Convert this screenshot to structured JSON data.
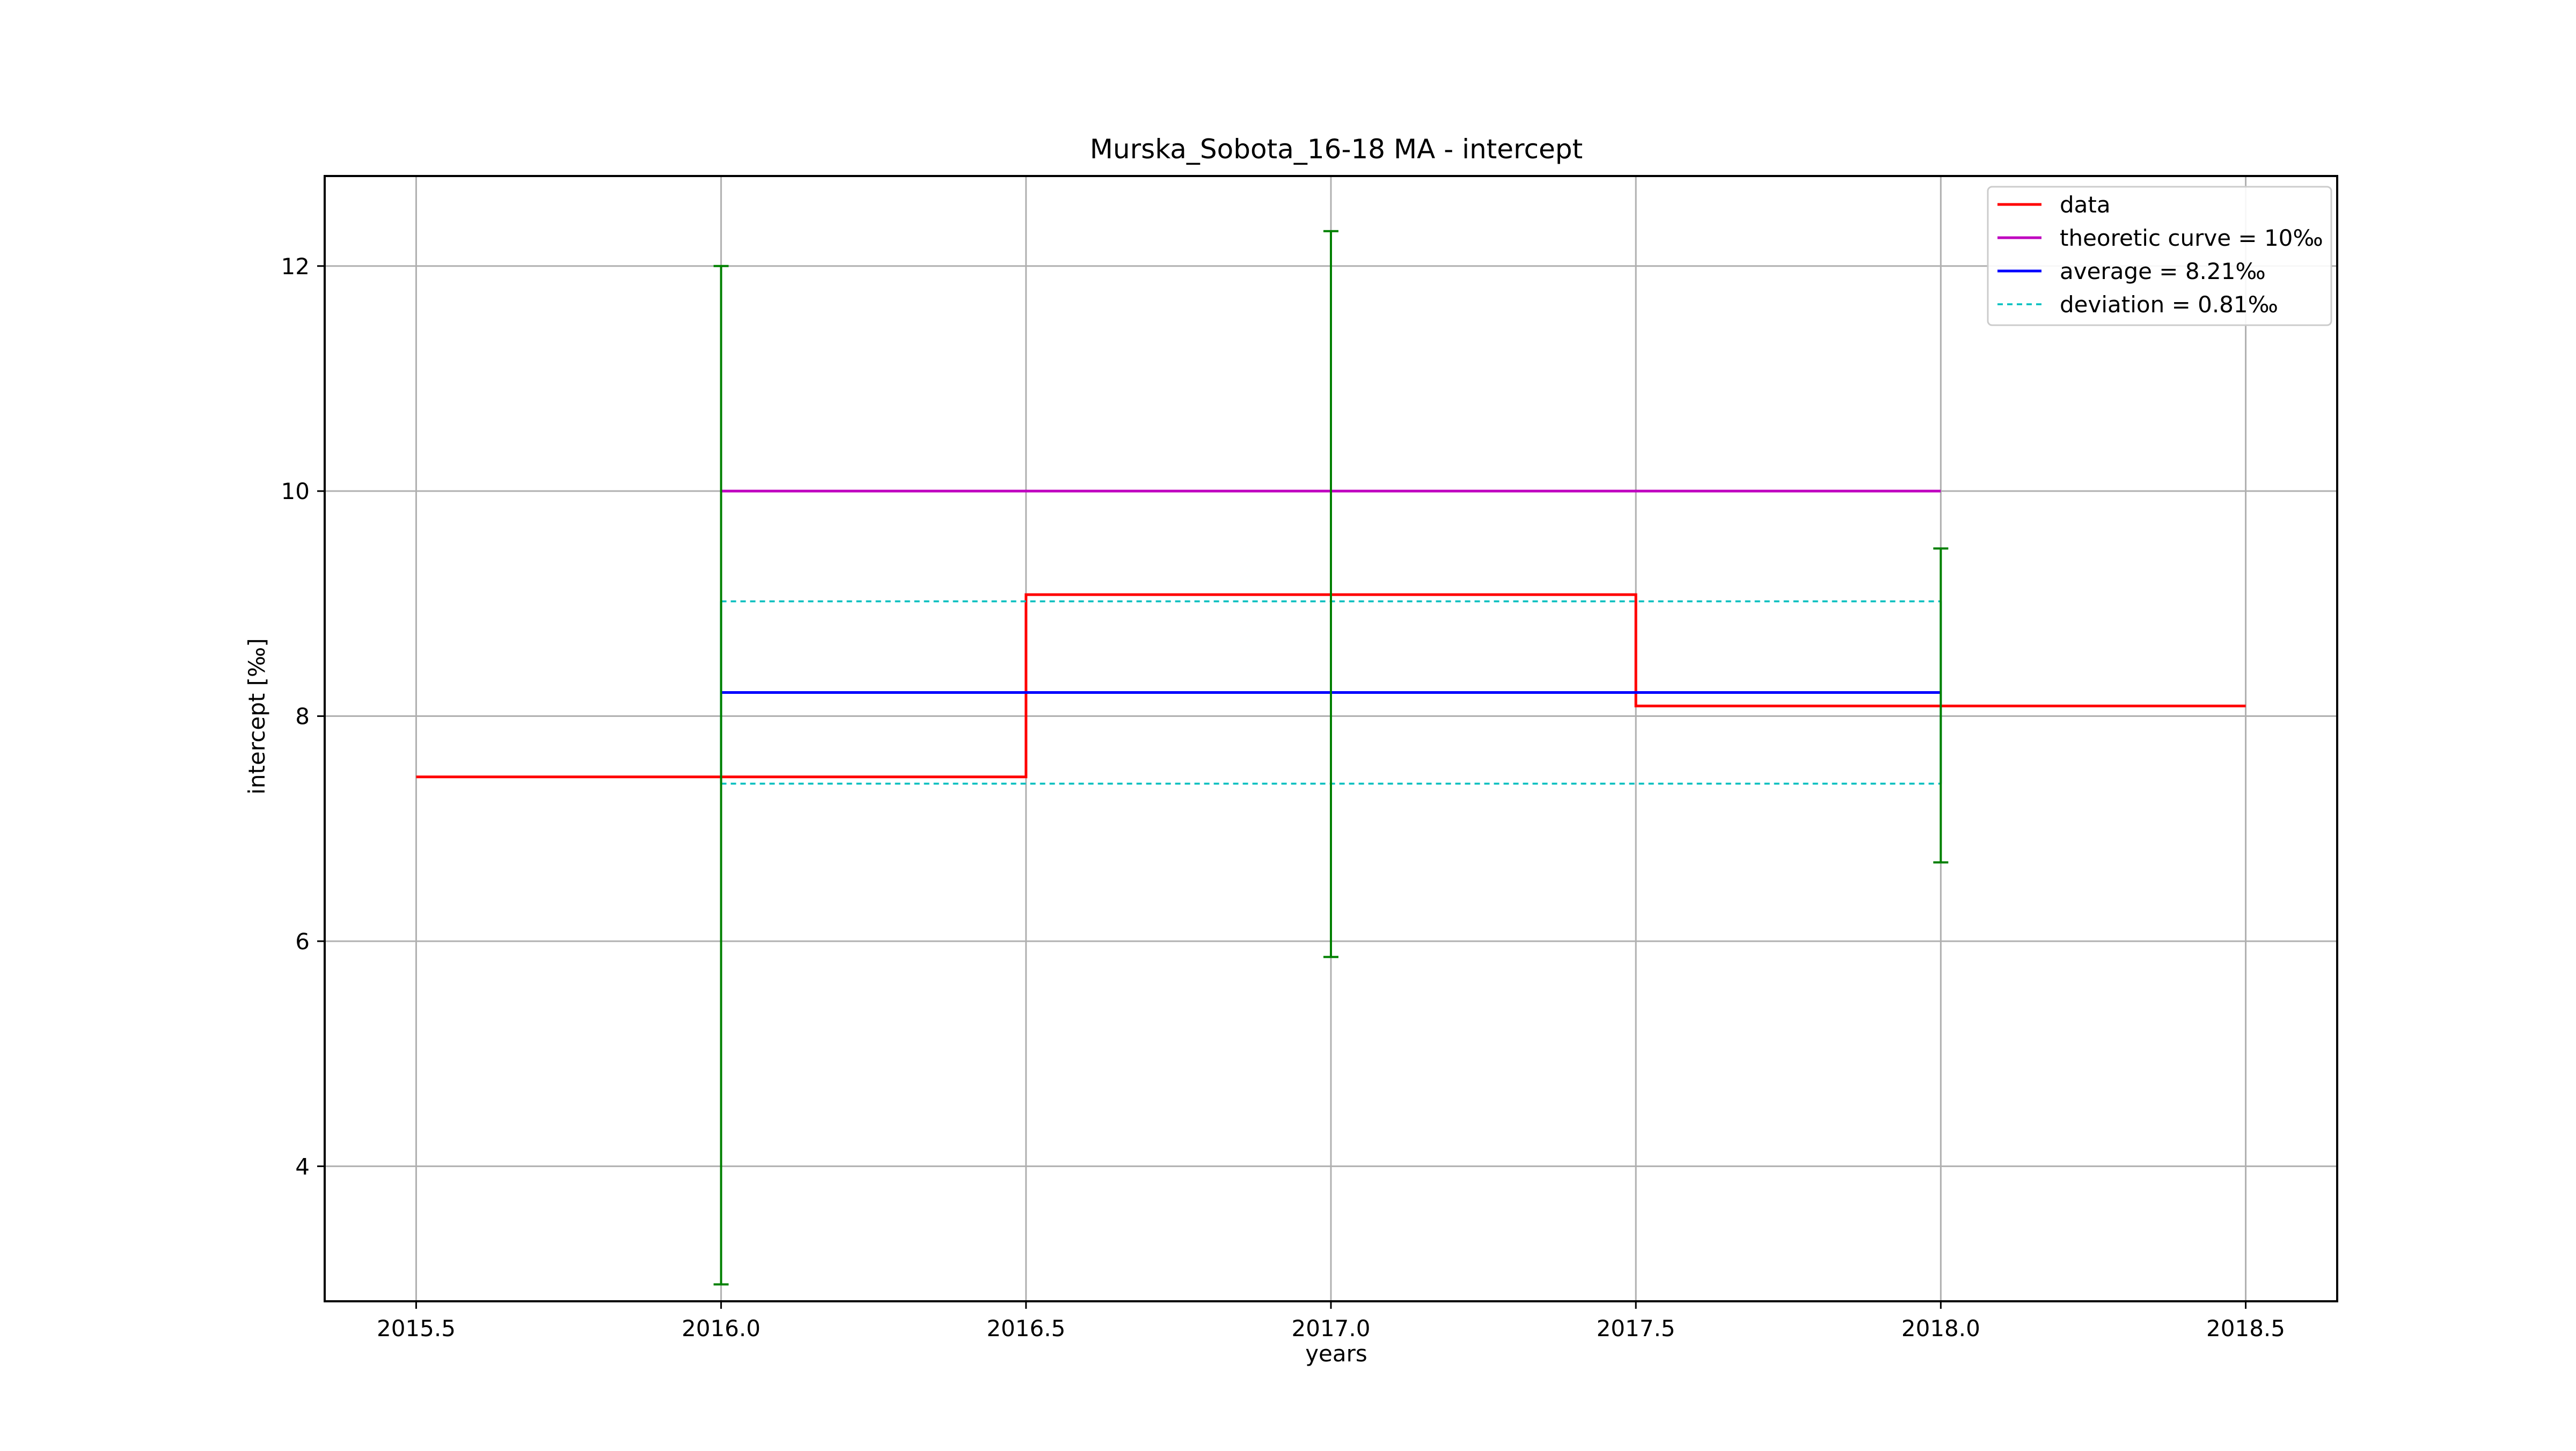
{
  "chart_data": {
    "type": "line",
    "title": "Murska_Sobota_16-18 MA - intercept",
    "xlabel": "years",
    "ylabel": "intercept [‰]",
    "xlim": [
      2015.35,
      2018.65
    ],
    "ylim": [
      2.8,
      12.8
    ],
    "xticks": [
      2015.5,
      2016.0,
      2016.5,
      2017.0,
      2017.5,
      2018.0,
      2018.5
    ],
    "xtick_labels": [
      "2015.5",
      "2016.0",
      "2016.5",
      "2017.0",
      "2017.5",
      "2018.0",
      "2018.5"
    ],
    "yticks": [
      4,
      6,
      8,
      10,
      12
    ],
    "ytick_labels": [
      "4",
      "6",
      "8",
      "10",
      "12"
    ],
    "grid": true,
    "legend_position": "top-right",
    "series": [
      {
        "name": "data",
        "style": "step",
        "color": "#ff0000",
        "x": [
          2015.5,
          2016.5,
          2016.5,
          2017.5,
          2017.5,
          2018.5
        ],
        "y": [
          7.46,
          7.46,
          9.08,
          9.08,
          8.09,
          8.09
        ]
      },
      {
        "name": "theoretic curve = 10‰",
        "style": "solid",
        "color": "#bf00bf",
        "x": [
          2016.0,
          2018.0
        ],
        "y": [
          10.0,
          10.0
        ]
      },
      {
        "name": "average = 8.21‰",
        "style": "solid",
        "color": "#0000ff",
        "x": [
          2016.0,
          2018.0
        ],
        "y": [
          8.21,
          8.21
        ]
      },
      {
        "name": "deviation = 0.81‰",
        "style": "dashed",
        "color": "#00bfbf",
        "x": [
          2016.0,
          2018.0
        ],
        "y_upper": [
          9.02,
          9.02
        ],
        "y_lower": [
          7.4,
          7.4
        ]
      }
    ],
    "error_bars": {
      "color": "#008000",
      "points": [
        {
          "x": 2016.0,
          "low": 2.95,
          "high": 12.0
        },
        {
          "x": 2017.0,
          "low": 5.86,
          "high": 12.31
        },
        {
          "x": 2018.0,
          "low": 6.7,
          "high": 9.49
        }
      ]
    },
    "deviation_markers": {
      "color": "#00bfbf",
      "x": [
        2016.0,
        2017.0,
        2018.0
      ],
      "low": 7.4,
      "high": 9.02
    }
  }
}
